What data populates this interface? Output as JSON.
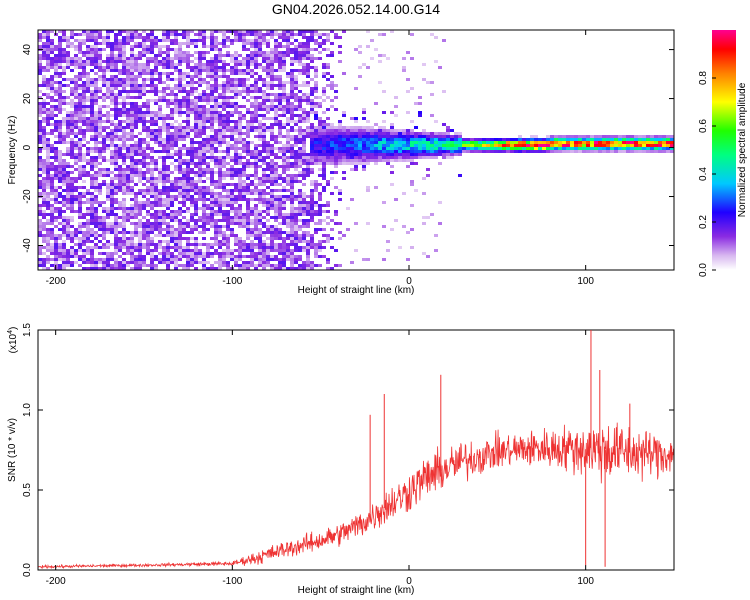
{
  "title": "GN04.2026.052.14.00.G14",
  "chart_data": [
    {
      "type": "heatmap",
      "panel": "spectrogram",
      "xlabel": "Height of straight line (km)",
      "ylabel": "Frequency (Hz)",
      "xlim": [
        -210,
        150
      ],
      "ylim": [
        -50,
        48
      ],
      "xticks": [
        -200,
        -100,
        0,
        100
      ],
      "yticks": [
        -40,
        -20,
        0,
        20,
        40
      ],
      "colorbar": {
        "label": "Normalized spectral amplitude",
        "range": [
          0.0,
          1.0
        ],
        "ticks": [
          0.0,
          0.2,
          0.4,
          0.6,
          0.8
        ],
        "colormap": "rainbow (white-violet-blue-cyan-green-yellow-red-magenta)"
      },
      "features": {
        "noise_region_x": [
          -210,
          -35
        ],
        "noise_amplitude_typical": 0.1,
        "signal_onset_x": -55,
        "signal_line_frequency_hz": 1,
        "signal_peak_region_x": [
          40,
          150
        ],
        "signal_peak_amplitude": 0.9
      }
    },
    {
      "type": "line",
      "panel": "snr",
      "xlabel": "Height of straight line (km)",
      "ylabel": "SNR (10 * v/v)",
      "multiplier_label": "(x10",
      "multiplier_exponent": "4",
      "multiplier_close": ")",
      "xlim": [
        -210,
        150
      ],
      "ylim": [
        0.0,
        1.5
      ],
      "xticks": [
        -200,
        -100,
        0,
        100
      ],
      "yticks": [
        "0.0",
        "0.5",
        "1.0",
        "1.5"
      ],
      "color": "#ee3333",
      "envelope": {
        "x": [
          -210,
          -150,
          -100,
          -85,
          -70,
          -55,
          -40,
          -25,
          -15,
          -5,
          10,
          30,
          50,
          70,
          90,
          110,
          130,
          150
        ],
        "mean": [
          0.02,
          0.03,
          0.04,
          0.08,
          0.13,
          0.17,
          0.22,
          0.3,
          0.38,
          0.45,
          0.58,
          0.68,
          0.74,
          0.76,
          0.76,
          0.75,
          0.73,
          0.72
        ],
        "spread": [
          0.01,
          0.01,
          0.015,
          0.05,
          0.06,
          0.07,
          0.08,
          0.1,
          0.12,
          0.14,
          0.15,
          0.14,
          0.12,
          0.13,
          0.16,
          0.22,
          0.18,
          0.14
        ]
      },
      "spikes": [
        {
          "x": -14,
          "y": 1.1
        },
        {
          "x": -22,
          "y": 0.97
        },
        {
          "x": 18,
          "y": 1.22
        },
        {
          "x": 103,
          "y": 1.55
        },
        {
          "x": 108,
          "y": 1.25
        },
        {
          "x": 100,
          "y": 0.03
        },
        {
          "x": 111,
          "y": 0.02
        },
        {
          "x": 125,
          "y": 1.04
        }
      ]
    }
  ]
}
